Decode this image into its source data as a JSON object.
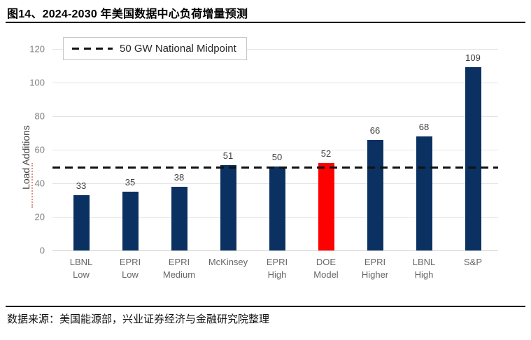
{
  "page": {
    "title": "图14、2024-2030 年美国数据中心负荷增量预测",
    "source_note": "数据来源：美国能源部，兴业证券经济与金融研究院整理"
  },
  "colors": {
    "bar_navy": "#0A3161",
    "bar_highlight_red": "#FF0000",
    "dashed_line": "#111111",
    "gridline": "#E4E4E4",
    "baseline": "#CFCFCF",
    "tick_label": "#7F7F7F",
    "value_label": "#404040",
    "artifact_red": "#D98270"
  },
  "chart_data": {
    "type": "bar",
    "categories": [
      "LBNL\nLow",
      "EPRI\nLow",
      "EPRI\nMedium",
      "McKinsey",
      "EPRI\nHigh",
      "DOE\nModel",
      "EPRI\nHigher",
      "LBNL\nHigh",
      "S&P"
    ],
    "values": [
      33,
      35,
      38,
      51,
      50,
      52,
      66,
      68,
      109
    ],
    "bar_color": "#0A3161",
    "highlight_index": 5,
    "highlight_color": "#FF0000",
    "title": "",
    "xlabel": "",
    "ylabel": "Load Additions",
    "ylim": [
      0,
      120
    ],
    "yticks": [
      0,
      20,
      40,
      60,
      80,
      100,
      120
    ],
    "grid": true,
    "legend_position": "top-left",
    "reference_line": {
      "value": 50,
      "label": "50 GW National Midpoint",
      "style": "dashed"
    }
  }
}
